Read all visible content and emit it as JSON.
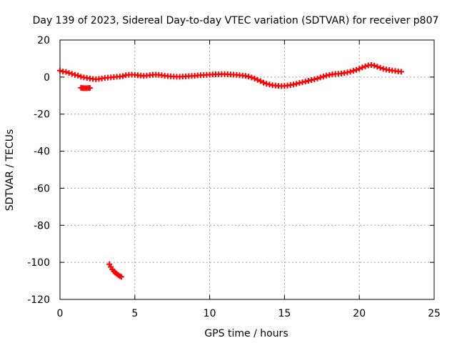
{
  "chart_data": {
    "type": "scatter",
    "title": "Day 139 of 2023, Sidereal Day-to-day VTEC variation (SDTVAR) for receiver p807",
    "xlabel": "GPS time / hours",
    "ylabel": "SDTVAR / TECUs",
    "xlim": [
      0,
      25
    ],
    "ylim": [
      -120,
      20
    ],
    "xticks": [
      0,
      5,
      10,
      15,
      20,
      25
    ],
    "yticks": [
      -120,
      -100,
      -80,
      -60,
      -40,
      -20,
      0,
      20
    ],
    "grid": true,
    "marker": "plus",
    "color": "#ff0000",
    "series": [
      {
        "name": "main",
        "x": [
          0.0,
          0.2,
          0.4,
          0.6,
          0.8,
          1.0,
          1.2,
          1.4,
          1.6,
          1.8,
          2.0,
          2.2,
          2.4,
          2.6,
          2.8,
          3.0,
          3.2,
          3.4,
          3.6,
          3.8,
          4.0,
          4.2,
          4.4,
          4.6,
          4.8,
          5.0,
          5.2,
          5.4,
          5.6,
          5.8,
          6.0,
          6.2,
          6.4,
          6.6,
          6.8,
          7.0,
          7.2,
          7.4,
          7.6,
          7.8,
          8.0,
          8.2,
          8.4,
          8.6,
          8.8,
          9.0,
          9.2,
          9.4,
          9.6,
          9.8,
          10.0,
          10.2,
          10.4,
          10.6,
          10.8,
          11.0,
          11.2,
          11.4,
          11.6,
          11.8,
          12.0,
          12.2,
          12.4,
          12.6,
          12.8,
          13.0,
          13.2,
          13.4,
          13.6,
          13.8,
          14.0,
          14.2,
          14.4,
          14.6,
          14.8,
          15.0,
          15.2,
          15.4,
          15.6,
          15.8,
          16.0,
          16.2,
          16.4,
          16.6,
          16.8,
          17.0,
          17.2,
          17.4,
          17.6,
          17.8,
          18.0,
          18.2,
          18.4,
          18.6,
          18.8,
          19.0,
          19.2,
          19.4,
          19.6,
          19.8,
          20.0,
          20.2,
          20.4,
          20.6,
          20.8,
          21.0,
          21.2,
          21.4,
          21.6,
          21.8,
          22.0,
          22.2,
          22.4,
          22.6,
          22.8
        ],
        "y": [
          3.5,
          3.0,
          2.8,
          2.2,
          1.8,
          1.2,
          0.8,
          0.2,
          -0.2,
          -0.5,
          -0.8,
          -1.0,
          -1.2,
          -1.0,
          -0.8,
          -0.5,
          -0.3,
          -0.2,
          0.0,
          0.2,
          0.3,
          0.5,
          1.0,
          1.2,
          1.3,
          1.2,
          1.0,
          0.8,
          0.6,
          0.8,
          1.0,
          1.2,
          1.3,
          1.2,
          1.0,
          0.7,
          0.5,
          0.4,
          0.3,
          0.2,
          0.2,
          0.3,
          0.4,
          0.5,
          0.6,
          0.7,
          0.9,
          1.0,
          1.1,
          1.2,
          1.3,
          1.4,
          1.5,
          1.5,
          1.6,
          1.6,
          1.5,
          1.4,
          1.3,
          1.2,
          1.0,
          0.8,
          0.6,
          0.3,
          -0.2,
          -0.8,
          -1.5,
          -2.2,
          -3.0,
          -3.6,
          -4.0,
          -4.4,
          -4.6,
          -4.8,
          -4.9,
          -4.8,
          -4.6,
          -4.3,
          -4.0,
          -3.6,
          -3.2,
          -2.8,
          -2.4,
          -2.0,
          -1.6,
          -1.2,
          -0.8,
          -0.2,
          0.3,
          0.8,
          1.2,
          1.5,
          1.7,
          1.8,
          1.9,
          2.2,
          2.5,
          2.9,
          3.4,
          3.9,
          4.5,
          5.2,
          5.8,
          6.3,
          6.5,
          6.2,
          5.6,
          5.0,
          4.5,
          4.1,
          3.8,
          3.5,
          3.3,
          3.1,
          2.9
        ]
      },
      {
        "name": "segment-2",
        "x": [
          1.4,
          1.5,
          1.6,
          1.7,
          1.8,
          1.9,
          2.0
        ],
        "y": [
          -5.8,
          -5.9,
          -6.0,
          -6.0,
          -6.0,
          -5.9,
          -5.9
        ]
      },
      {
        "name": "segment-3",
        "x": [
          3.3,
          3.4,
          3.5,
          3.6,
          3.7,
          3.8,
          3.9,
          4.0,
          4.1
        ],
        "y": [
          -101.0,
          -102.5,
          -103.8,
          -104.8,
          -105.6,
          -106.3,
          -106.9,
          -107.4,
          -107.8
        ]
      }
    ]
  }
}
